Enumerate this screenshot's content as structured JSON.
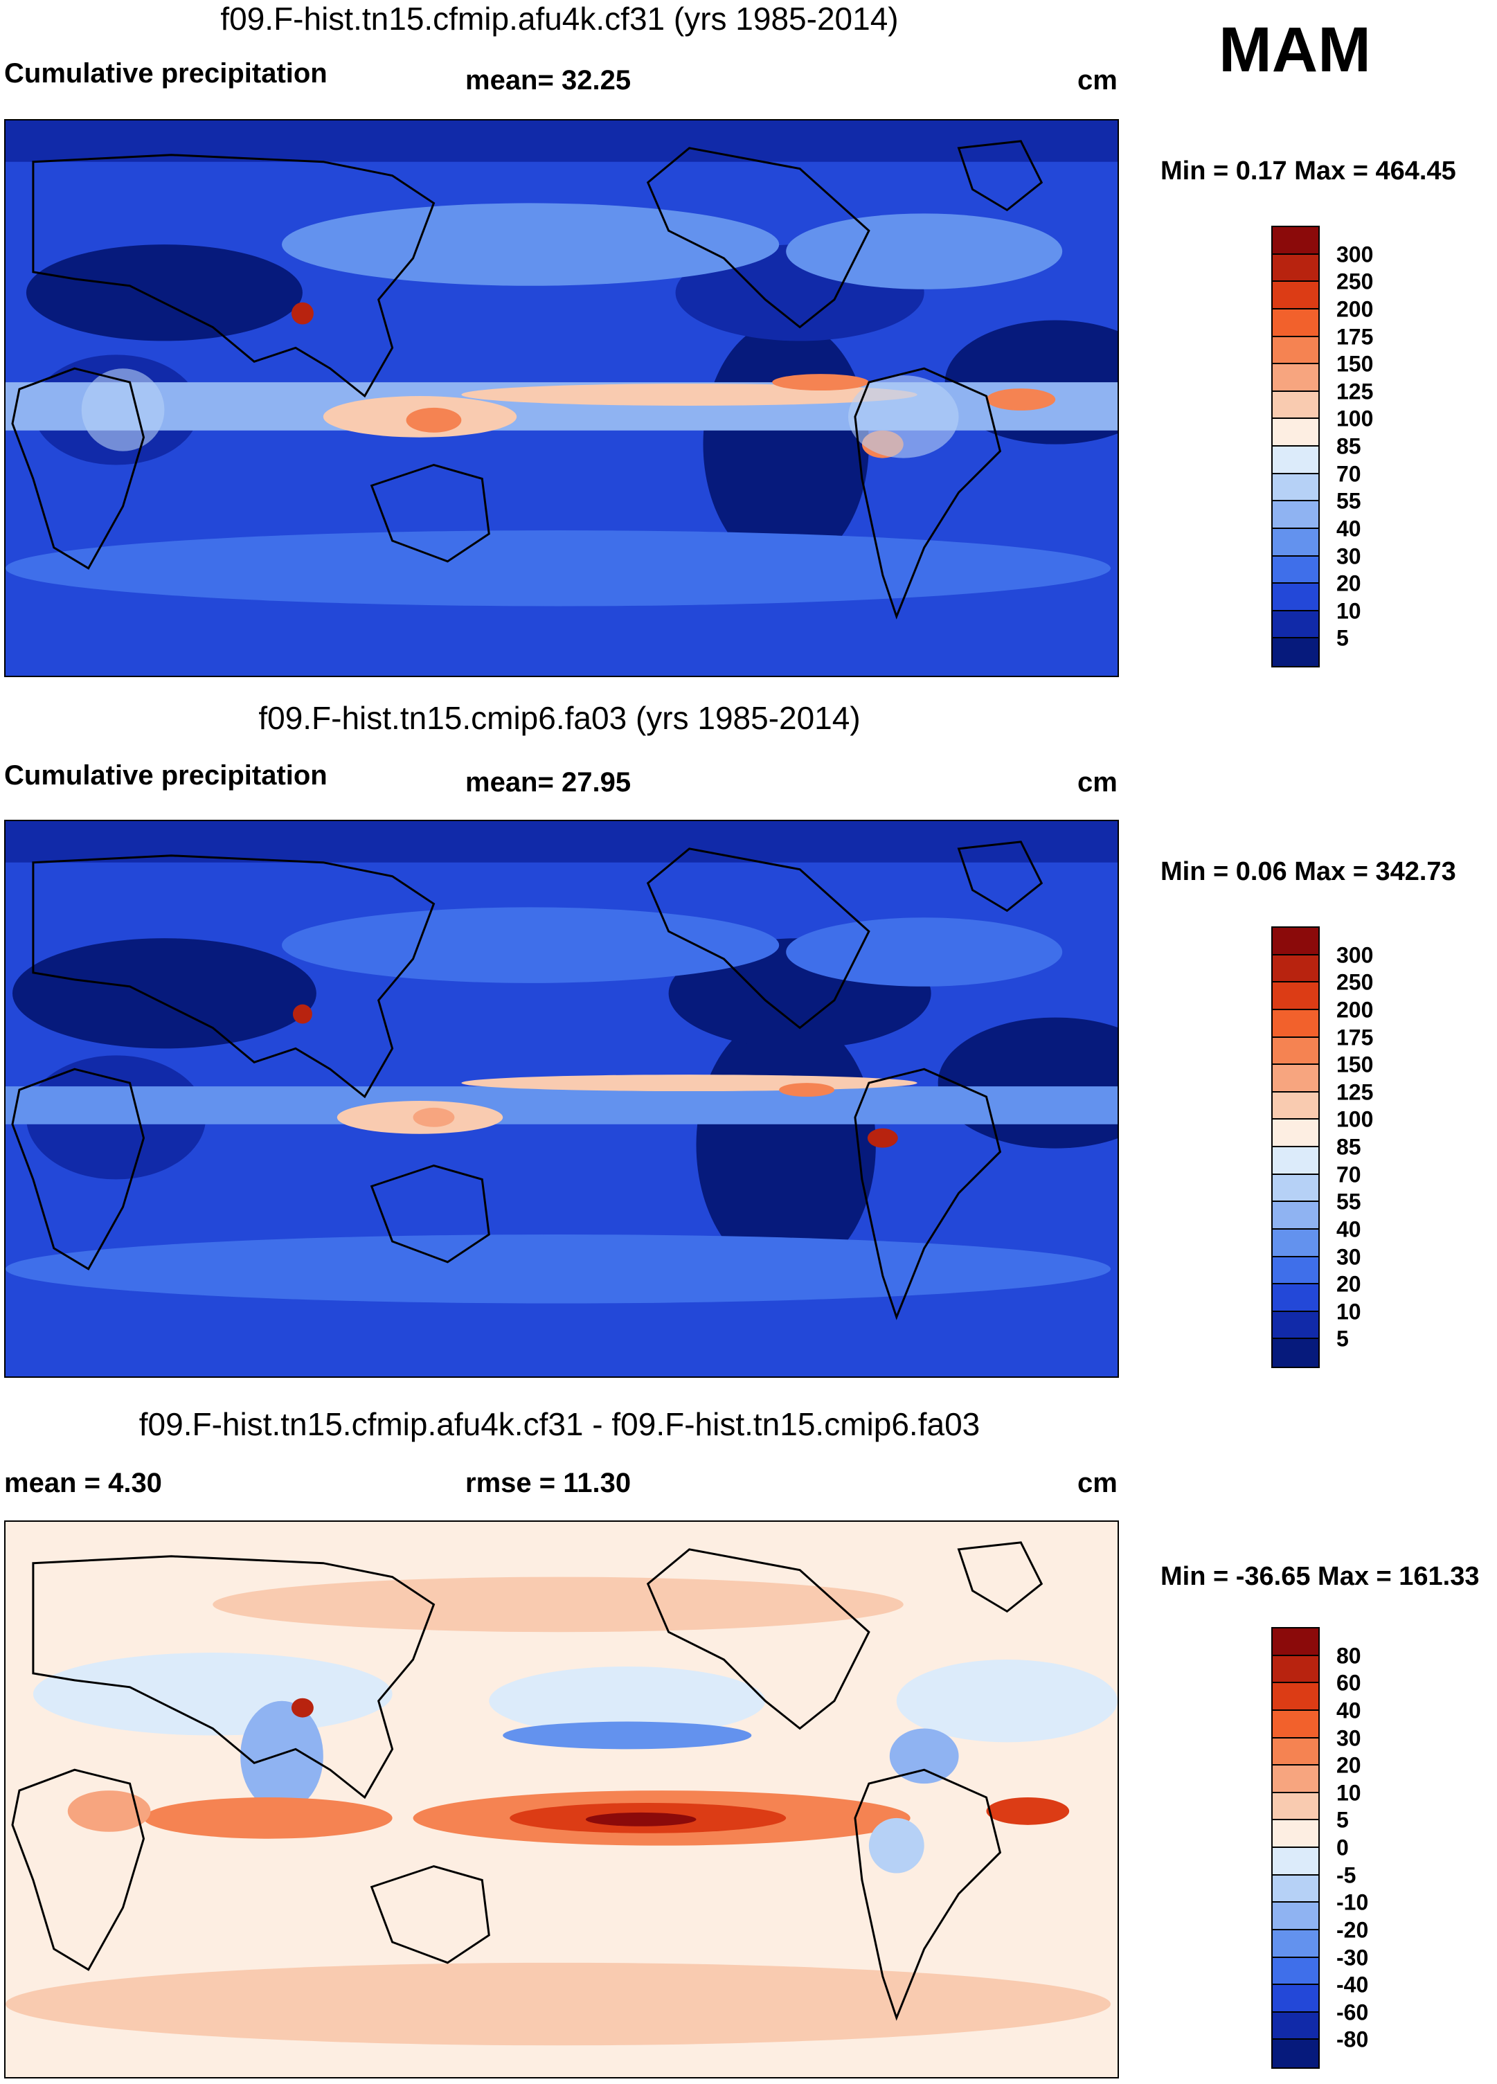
{
  "season": "MAM",
  "units": "cm",
  "panels": [
    {
      "title": "f09.F-hist.tn15.cfmip.afu4k.cf31 (yrs 1985-2014)",
      "left_label": "Cumulative precipitation",
      "center_label": "mean=  32.25",
      "right_label": "cm",
      "minmax": "Min =   0.17 Max = 464.45",
      "colorbar": {
        "labels": [
          "300",
          "250",
          "200",
          "175",
          "150",
          "125",
          "100",
          "85",
          "70",
          "55",
          "40",
          "30",
          "20",
          "10",
          "5"
        ],
        "colors": [
          "#8b0a0a",
          "#b8230f",
          "#dc3c15",
          "#f2612c",
          "#f58352",
          "#f7a57f",
          "#f9cbb0",
          "#fdeee2",
          "#dcebfa",
          "#b6d1f6",
          "#8fb3f2",
          "#6392ee",
          "#3f6fea",
          "#2348d8",
          "#112aa9",
          "#061a7c"
        ]
      },
      "scene": "precip_afu4k"
    },
    {
      "title": "f09.F-hist.tn15.cmip6.fa03 (yrs 1985-2014)",
      "left_label": "Cumulative precipitation",
      "center_label": "mean=  27.95",
      "right_label": "cm",
      "minmax": "Min =   0.06 Max = 342.73",
      "colorbar": {
        "labels": [
          "300",
          "250",
          "200",
          "175",
          "150",
          "125",
          "100",
          "85",
          "70",
          "55",
          "40",
          "30",
          "20",
          "10",
          "5"
        ],
        "colors": [
          "#8b0a0a",
          "#b8230f",
          "#dc3c15",
          "#f2612c",
          "#f58352",
          "#f7a57f",
          "#f9cbb0",
          "#fdeee2",
          "#dcebfa",
          "#b6d1f6",
          "#8fb3f2",
          "#6392ee",
          "#3f6fea",
          "#2348d8",
          "#112aa9",
          "#061a7c"
        ]
      },
      "scene": "precip_cmip6"
    },
    {
      "title": "f09.F-hist.tn15.cfmip.afu4k.cf31 - f09.F-hist.tn15.cmip6.fa03",
      "left_label": "mean =   4.30",
      "center_label": "rmse =  11.30",
      "right_label": "cm",
      "minmax": "Min = -36.65 Max = 161.33",
      "colorbar": {
        "labels": [
          "80",
          "60",
          "40",
          "30",
          "20",
          "10",
          "5",
          "0",
          "-5",
          "-10",
          "-20",
          "-30",
          "-40",
          "-60",
          "-80"
        ],
        "colors": [
          "#8b0a0a",
          "#b8230f",
          "#dc3c15",
          "#f2612c",
          "#f58352",
          "#f7a57f",
          "#f9cbb0",
          "#fdeee2",
          "#dcebfa",
          "#b6d1f6",
          "#8fb3f2",
          "#6392ee",
          "#3f6fea",
          "#2348d8",
          "#112aa9",
          "#061a7c"
        ]
      },
      "scene": "difference"
    }
  ]
}
